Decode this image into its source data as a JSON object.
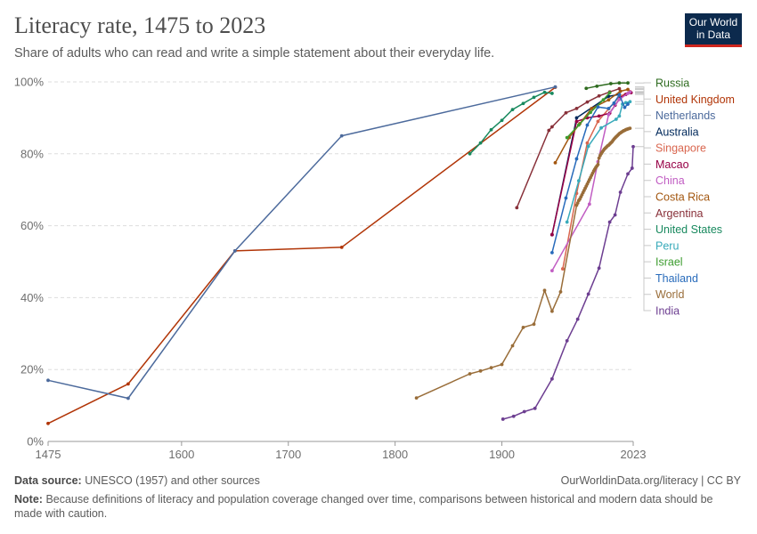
{
  "header": {
    "title": "Literacy rate, 1475 to 2023",
    "subtitle": "Share of adults who can read and write a simple statement about their everyday life.",
    "logo_line1": "Our World",
    "logo_line2": "in Data"
  },
  "footer": {
    "source_label": "Data source:",
    "source_text": "UNESCO (1957) and other sources",
    "credit": "OurWorldinData.org/literacy | CC BY",
    "note_label": "Note:",
    "note_text": "Because definitions of literacy and population coverage changed over time, comparisons between historical and modern data should be made with caution."
  },
  "chart_data": {
    "type": "line",
    "title": "Literacy rate, 1475 to 2023",
    "subtitle": "Share of adults who can read and write a simple statement about their everyday life.",
    "xlim": [
      1475,
      2023
    ],
    "ylim": [
      0,
      100
    ],
    "x_ticks": [
      1475,
      1600,
      1700,
      1800,
      1900,
      2023
    ],
    "y_ticks": [
      0,
      20,
      40,
      60,
      80,
      100
    ],
    "y_tick_labels": [
      "0%",
      "20%",
      "40%",
      "60%",
      "80%",
      "100%"
    ],
    "grid": "horizontal dashed",
    "legend": "right",
    "series": [
      {
        "name": "Russia",
        "color": "#2e6b1f",
        "points": [
          [
            1979,
            98.2
          ],
          [
            1989,
            98.8
          ],
          [
            2002,
            99.5
          ],
          [
            2010,
            99.7
          ],
          [
            2018,
            99.7
          ]
        ]
      },
      {
        "name": "United Kingdom",
        "color": "#b13507",
        "points": [
          [
            1475,
            5
          ],
          [
            1550,
            16
          ],
          [
            1650,
            53
          ],
          [
            1750,
            54
          ],
          [
            1950,
            98.5
          ]
        ]
      },
      {
        "name": "Netherlands",
        "color": "#4c6a9c",
        "points": [
          [
            1475,
            17
          ],
          [
            1550,
            12
          ],
          [
            1650,
            53
          ],
          [
            1750,
            85
          ],
          [
            1950,
            98.6
          ]
        ]
      },
      {
        "name": "Australia",
        "color": "#00295b",
        "points": [
          [
            1947,
            57.5
          ],
          [
            1970,
            90
          ],
          [
            2000,
            96
          ],
          [
            2010,
            96.5
          ]
        ]
      },
      {
        "name": "Singapore",
        "color": "#d9664f",
        "points": [
          [
            1957,
            48
          ],
          [
            1970,
            69
          ],
          [
            1980,
            83
          ],
          [
            1990,
            89
          ],
          [
            2000,
            92.5
          ],
          [
            2010,
            95.9
          ],
          [
            2020,
            97.3
          ]
        ]
      },
      {
        "name": "Macao",
        "color": "#970046",
        "points": [
          [
            1947,
            57.5
          ],
          [
            1970,
            89
          ],
          [
            1980,
            90
          ],
          [
            1991,
            90.5
          ],
          [
            2001,
            91.3
          ],
          [
            2006,
            93.5
          ],
          [
            2011,
            95.6
          ],
          [
            2016,
            96.5
          ],
          [
            2021,
            97
          ]
        ]
      },
      {
        "name": "China",
        "color": "#c15dc3",
        "points": [
          [
            1947,
            47.5
          ],
          [
            1982,
            66
          ],
          [
            1990,
            77.8
          ],
          [
            2000,
            90.9
          ],
          [
            2010,
            95.1
          ],
          [
            2018,
            96.8
          ],
          [
            2020,
            97.2
          ]
        ]
      },
      {
        "name": "Costa Rica",
        "color": "#a2560f",
        "points": [
          [
            1950,
            77.5
          ],
          [
            1963,
            84.5
          ],
          [
            1973,
            88.4
          ],
          [
            1984,
            92.6
          ],
          [
            2000,
            95
          ],
          [
            2011,
            97.4
          ],
          [
            2018,
            97.9
          ]
        ]
      },
      {
        "name": "Argentina",
        "color": "#883039",
        "points": [
          [
            1914,
            65
          ],
          [
            1944,
            86.5
          ],
          [
            1947,
            87.5
          ],
          [
            1960,
            91.4
          ],
          [
            1970,
            92.6
          ],
          [
            1980,
            94.4
          ],
          [
            1991,
            96.1
          ],
          [
            2001,
            97.2
          ],
          [
            2010,
            98.1
          ]
        ]
      },
      {
        "name": "United States",
        "color": "#18895e",
        "points": [
          [
            1870,
            80
          ],
          [
            1880,
            83
          ],
          [
            1890,
            86.7
          ],
          [
            1900,
            89.3
          ],
          [
            1910,
            92.3
          ],
          [
            1920,
            94
          ],
          [
            1930,
            95.7
          ],
          [
            1940,
            97.1
          ],
          [
            1947,
            96.8
          ]
        ]
      },
      {
        "name": "Peru",
        "color": "#38aaba",
        "points": [
          [
            1961,
            61
          ],
          [
            1972,
            72.5
          ],
          [
            1981,
            82.1
          ],
          [
            1993,
            87.2
          ],
          [
            2007,
            89.6
          ],
          [
            2010,
            90.5
          ],
          [
            2013,
            93.8
          ],
          [
            2016,
            94.2
          ],
          [
            2020,
            94.5
          ]
        ]
      },
      {
        "name": "Israel",
        "color": "#3c9c2e",
        "points": [
          [
            1961,
            84.5
          ],
          [
            1972,
            88
          ],
          [
            1983,
            91.5
          ],
          [
            1995,
            95
          ],
          [
            2001,
            97
          ]
        ]
      },
      {
        "name": "Thailand",
        "color": "#286bbb",
        "points": [
          [
            1947,
            52.5
          ],
          [
            1960,
            67.7
          ],
          [
            1970,
            78.6
          ],
          [
            1980,
            88
          ],
          [
            1990,
            93
          ],
          [
            2000,
            92.6
          ],
          [
            2005,
            94.1
          ],
          [
            2010,
            96.4
          ],
          [
            2015,
            92.9
          ],
          [
            2018,
            93.8
          ]
        ]
      },
      {
        "name": "World",
        "color": "#996d39",
        "points": [
          [
            1820,
            12.1
          ],
          [
            1870,
            18.8
          ],
          [
            1880,
            19.6
          ],
          [
            1890,
            20.5
          ],
          [
            1900,
            21.4
          ],
          [
            1910,
            26.6
          ],
          [
            1920,
            31.7
          ],
          [
            1930,
            32.6
          ],
          [
            1940,
            42
          ],
          [
            1947,
            36.2
          ],
          [
            1955,
            41.6
          ],
          [
            1970,
            65.7
          ],
          [
            1971,
            66.3
          ],
          [
            1972,
            67
          ],
          [
            1973,
            67.4
          ],
          [
            1974,
            68
          ],
          [
            1975,
            68.6
          ],
          [
            1976,
            69.2
          ],
          [
            1977,
            69.8
          ],
          [
            1978,
            70.4
          ],
          [
            1979,
            71
          ],
          [
            1980,
            71.6
          ],
          [
            1981,
            72.2
          ],
          [
            1982,
            72.8
          ],
          [
            1983,
            73.4
          ],
          [
            1984,
            74
          ],
          [
            1985,
            74.6
          ],
          [
            1986,
            75.2
          ],
          [
            1987,
            75.7
          ],
          [
            1988,
            76.2
          ],
          [
            1989,
            76.6
          ],
          [
            1990,
            77
          ],
          [
            1991,
            78.8
          ],
          [
            1992,
            79.5
          ],
          [
            1993,
            80
          ],
          [
            1994,
            80.5
          ],
          [
            1995,
            80.9
          ],
          [
            1996,
            81.3
          ],
          [
            1997,
            81.6
          ],
          [
            1998,
            81.9
          ],
          [
            1999,
            82.2
          ],
          [
            2000,
            82.4
          ],
          [
            2001,
            82.7
          ],
          [
            2002,
            83
          ],
          [
            2003,
            83.3
          ],
          [
            2004,
            83.7
          ],
          [
            2005,
            84.1
          ],
          [
            2006,
            84.4
          ],
          [
            2007,
            84.7
          ],
          [
            2008,
            85
          ],
          [
            2009,
            85.3
          ],
          [
            2010,
            85.6
          ],
          [
            2011,
            85.8
          ],
          [
            2012,
            86
          ],
          [
            2013,
            86.2
          ],
          [
            2014,
            86.4
          ],
          [
            2015,
            86.5
          ],
          [
            2016,
            86.7
          ],
          [
            2017,
            86.8
          ],
          [
            2018,
            86.9
          ],
          [
            2019,
            87
          ],
          [
            2020,
            87.1
          ]
        ]
      },
      {
        "name": "India",
        "color": "#6d3e91",
        "points": [
          [
            1901,
            6.2
          ],
          [
            1911,
            7
          ],
          [
            1921,
            8.3
          ],
          [
            1931,
            9.2
          ],
          [
            1947,
            17.4
          ],
          [
            1961,
            28
          ],
          [
            1971,
            34
          ],
          [
            1981,
            41
          ],
          [
            1991,
            48.2
          ],
          [
            2001,
            61
          ],
          [
            2006,
            63
          ],
          [
            2011,
            69.3
          ],
          [
            2018,
            74.4
          ],
          [
            2022,
            76
          ],
          [
            2023,
            82
          ]
        ]
      }
    ]
  }
}
